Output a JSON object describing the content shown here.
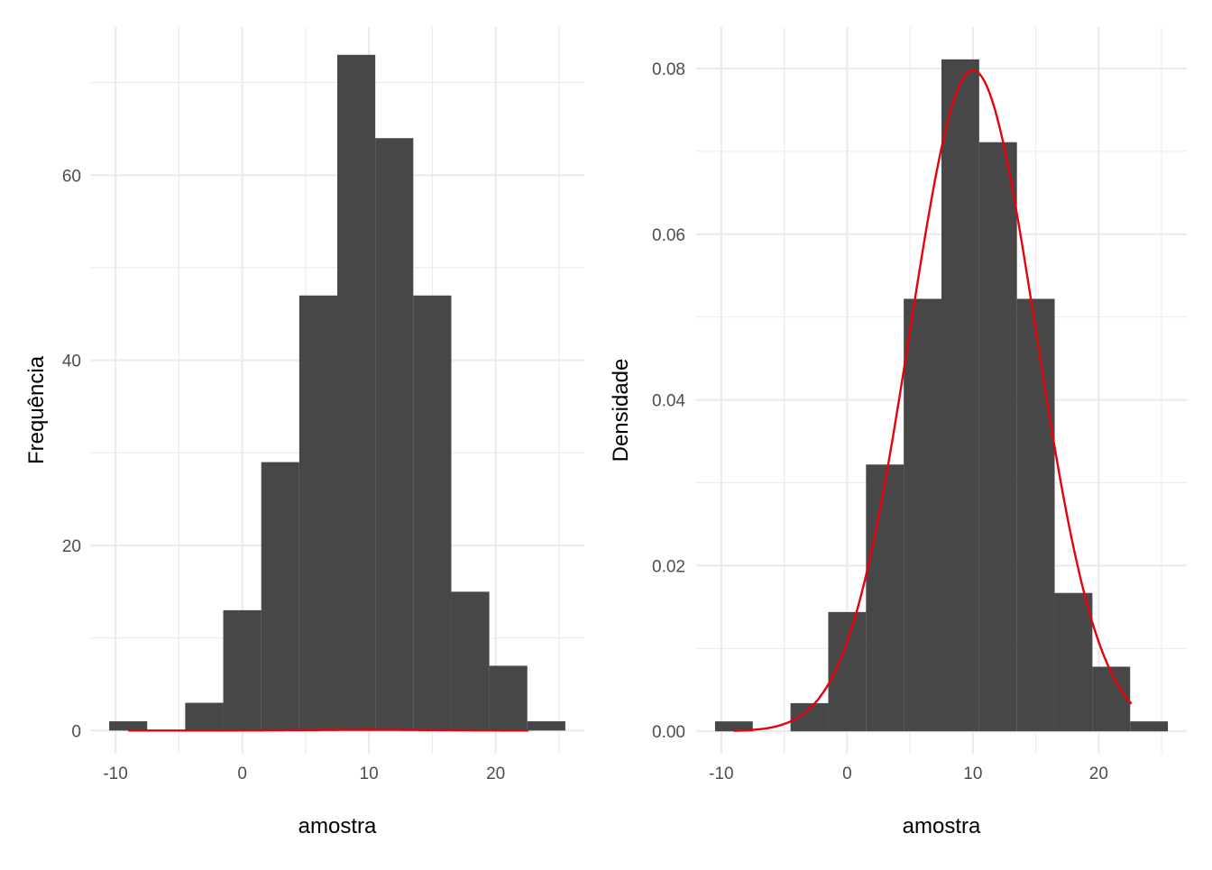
{
  "chart_data": [
    {
      "type": "bar",
      "xlabel": "amostra",
      "ylabel": "Frequência",
      "bin_edges": [
        -10.5,
        -7.5,
        -4.5,
        -1.5,
        1.5,
        4.5,
        7.5,
        10.5,
        13.5,
        16.5,
        19.5,
        22.5,
        25.5
      ],
      "values": [
        1,
        0,
        3,
        13,
        29,
        47,
        73,
        64,
        47,
        15,
        7,
        1
      ],
      "xlim": [
        -12,
        27
      ],
      "ylim": [
        -2.5,
        76
      ],
      "xticks": [
        -10,
        0,
        10,
        20
      ],
      "xtick_labels": [
        "-10",
        "0",
        "10",
        "20"
      ],
      "yticks": [
        0,
        20,
        40,
        60
      ],
      "ytick_labels": [
        "0",
        "20",
        "40",
        "60"
      ],
      "curve": {
        "kind": "normal_density",
        "mean": 10,
        "sd": 5,
        "x_range": [
          -9,
          22.6
        ]
      },
      "grid": true
    },
    {
      "type": "bar",
      "xlabel": "amostra",
      "ylabel": "Densidade",
      "bin_edges": [
        -10.5,
        -7.5,
        -4.5,
        -1.5,
        1.5,
        4.5,
        7.5,
        10.5,
        13.5,
        16.5,
        19.5,
        22.5,
        25.5
      ],
      "values": [
        0.0012,
        0,
        0.0034,
        0.0144,
        0.0322,
        0.0522,
        0.0811,
        0.0711,
        0.0522,
        0.0167,
        0.0078,
        0.0012
      ],
      "xlim": [
        -12,
        27
      ],
      "ylim": [
        -0.0027,
        0.085
      ],
      "xticks": [
        -10,
        0,
        10,
        20
      ],
      "xtick_labels": [
        "-10",
        "0",
        "10",
        "20"
      ],
      "yticks": [
        0,
        0.02,
        0.04,
        0.06,
        0.08
      ],
      "ytick_labels": [
        "0.00",
        "0.02",
        "0.04",
        "0.06",
        "0.08"
      ],
      "curve": {
        "kind": "normal_density",
        "mean": 10,
        "sd": 5,
        "x_range": [
          -9,
          22.6
        ]
      },
      "grid": true
    }
  ],
  "colors": {
    "bar": "#474747",
    "curve": "#e8000b",
    "grid": "#ebebeb"
  }
}
